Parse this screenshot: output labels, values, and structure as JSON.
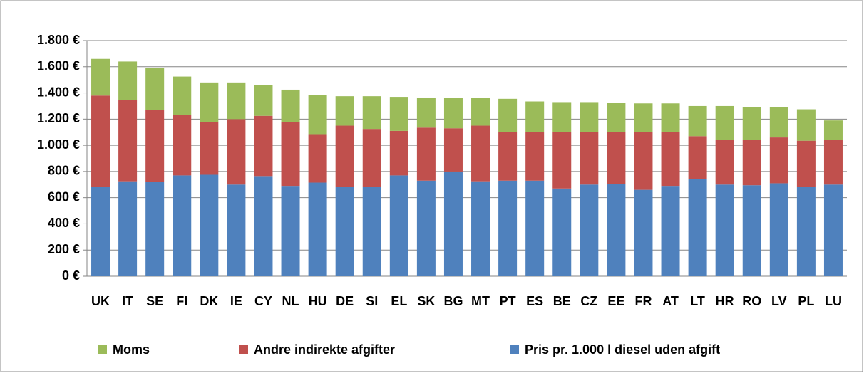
{
  "chart_data": {
    "type": "stacked_bar",
    "categories": [
      "UK",
      "IT",
      "SE",
      "FI",
      "DK",
      "IE",
      "CY",
      "NL",
      "HU",
      "DE",
      "SI",
      "EL",
      "SK",
      "BG",
      "MT",
      "PT",
      "ES",
      "BE",
      "CZ",
      "EE",
      "FR",
      "AT",
      "LT",
      "HR",
      "RO",
      "LV",
      "PL",
      "LU"
    ],
    "series": [
      {
        "name": "Pris pr. 1.000 l diesel uden afgift",
        "color": "#4f81bd",
        "values": [
          680,
          725,
          720,
          770,
          775,
          700,
          765,
          690,
          715,
          685,
          680,
          770,
          730,
          800,
          725,
          730,
          730,
          670,
          700,
          705,
          660,
          690,
          740,
          700,
          695,
          710,
          685,
          700
        ]
      },
      {
        "name": "Andre indirekte afgifter",
        "color": "#c0504d",
        "values": [
          700,
          620,
          550,
          460,
          405,
          500,
          460,
          485,
          370,
          465,
          445,
          340,
          405,
          330,
          425,
          370,
          370,
          430,
          400,
          395,
          440,
          410,
          330,
          340,
          345,
          350,
          350,
          340
        ]
      },
      {
        "name": "Moms",
        "color": "#9bbb59",
        "values": [
          280,
          295,
          320,
          295,
          300,
          280,
          235,
          250,
          300,
          225,
          250,
          260,
          230,
          230,
          210,
          255,
          235,
          230,
          230,
          225,
          220,
          220,
          230,
          260,
          250,
          230,
          240,
          150
        ]
      }
    ],
    "ylim": [
      0,
      1800
    ],
    "yticks": [
      {
        "value": 0,
        "label": "0 €"
      },
      {
        "value": 200,
        "label": "200 €"
      },
      {
        "value": 400,
        "label": "400 €"
      },
      {
        "value": 600,
        "label": "600 €"
      },
      {
        "value": 800,
        "label": "800 €"
      },
      {
        "value": 1000,
        "label": "1.000 €"
      },
      {
        "value": 1200,
        "label": "1.200 €"
      },
      {
        "value": 1400,
        "label": "1.400 €"
      },
      {
        "value": 1600,
        "label": "1.600 €"
      },
      {
        "value": 1800,
        "label": "1.800 €"
      }
    ],
    "grid": true
  }
}
